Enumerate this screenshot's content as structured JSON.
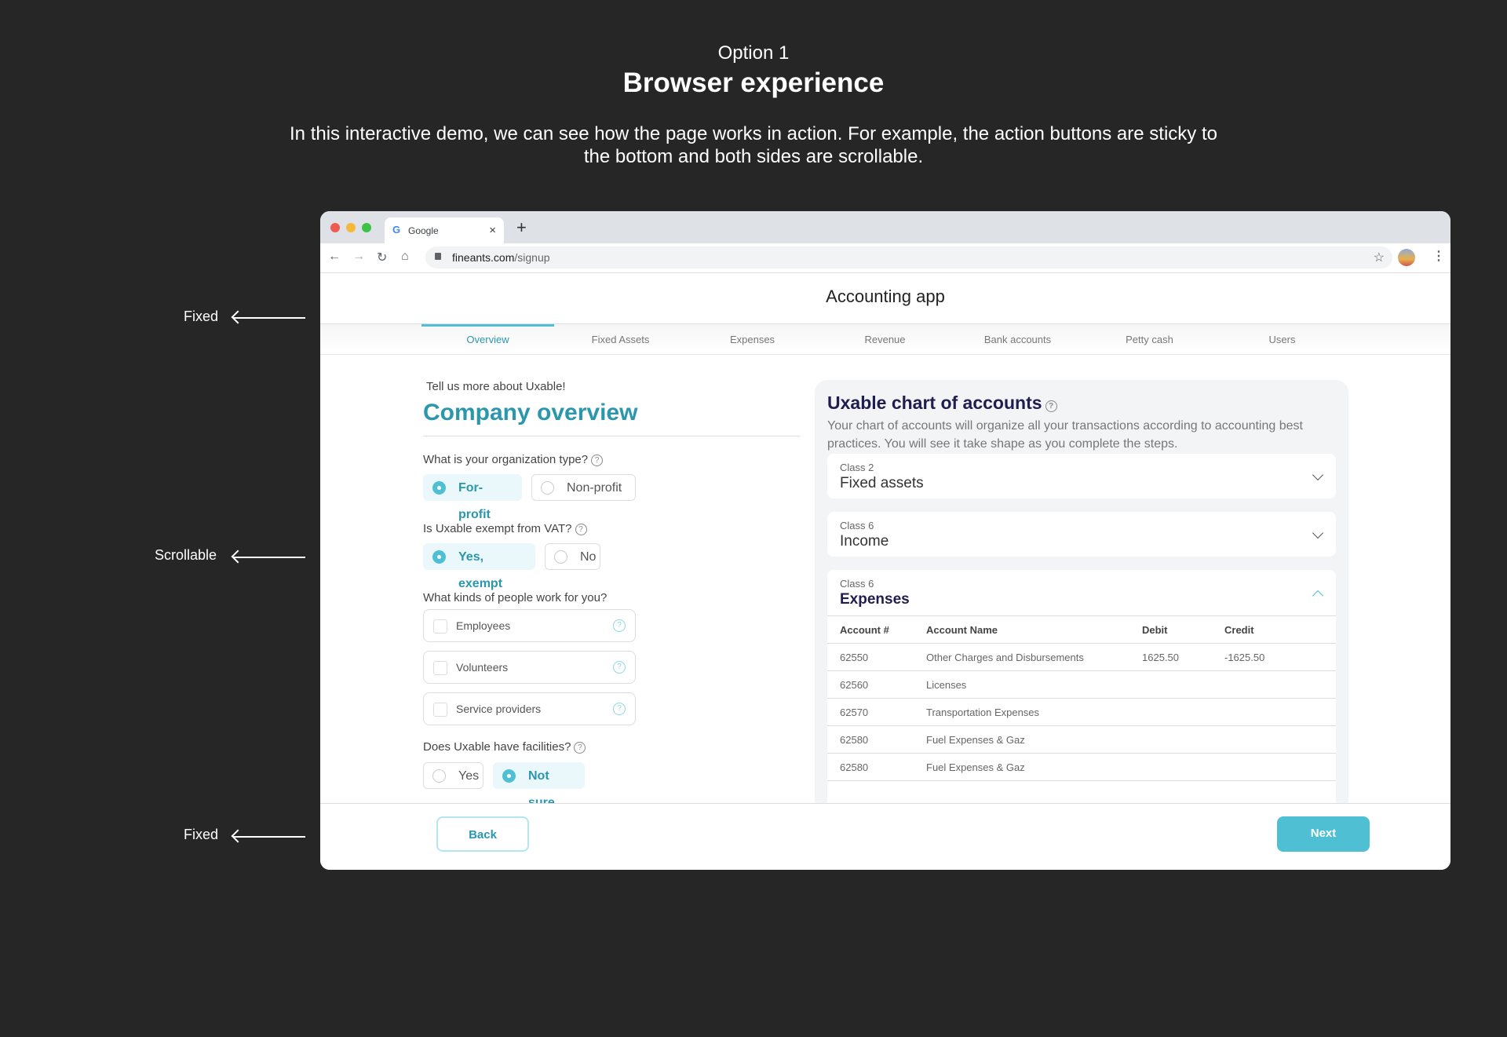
{
  "header": {
    "option": "Option 1",
    "title": "Browser experience",
    "description": "In this interactive demo, we can see how the page works in action. For example, the action buttons are sticky to the bottom and both sides are scrollable."
  },
  "annotations": {
    "top": "Fixed",
    "middle": "Scrollable",
    "bottom": "Fixed"
  },
  "browser": {
    "tab_title": "Google",
    "url_domain": "fineants.com",
    "url_path": "/signup",
    "new_tab": "+",
    "close": "×"
  },
  "app": {
    "title": "Accounting app",
    "tabs": [
      {
        "label": "Overview",
        "active": true
      },
      {
        "label": "Fixed Assets"
      },
      {
        "label": "Expenses"
      },
      {
        "label": "Revenue"
      },
      {
        "label": "Bank accounts"
      },
      {
        "label": "Petty cash"
      },
      {
        "label": "Users"
      }
    ]
  },
  "form": {
    "intro": "Tell us more about Uxable!",
    "title": "Company overview",
    "q1": {
      "label": "What is your organization type?",
      "options": [
        "For-profit",
        "Non-profit"
      ],
      "selected": "For-profit"
    },
    "q2": {
      "label": "Is Uxable exempt from VAT?",
      "options": [
        "Yes, exempt",
        "No"
      ],
      "selected": "Yes, exempt"
    },
    "q3": {
      "label": "What kinds of people work for you?",
      "options": [
        "Employees",
        "Volunteers",
        "Service providers"
      ]
    },
    "q4": {
      "label": "Does Uxable have facilities?",
      "options": [
        "Yes",
        "Not sure"
      ],
      "selected": "Not sure"
    }
  },
  "chart": {
    "title": "Uxable chart of accounts",
    "description": "Your chart of accounts will organize all your transactions according to accounting best practices. You will see it take shape as you complete the steps.",
    "sections": [
      {
        "class": "Class 2",
        "name": "Fixed assets",
        "expanded": false
      },
      {
        "class": "Class 6",
        "name": "Income",
        "expanded": false
      },
      {
        "class": "Class 6",
        "name": "Expenses",
        "expanded": true
      }
    ],
    "columns": [
      "Account #",
      "Account Name",
      "Debit",
      "Credit"
    ],
    "rows": [
      [
        "62550",
        "Other Charges and Disbursements",
        "1625.50",
        "-1625.50"
      ],
      [
        "62560",
        "Licenses",
        "",
        ""
      ],
      [
        "62570",
        "Transportation Expenses",
        "",
        ""
      ],
      [
        "62580",
        "Fuel Expenses & Gaz",
        "",
        ""
      ],
      [
        "62580",
        "Fuel Expenses & Gaz",
        "",
        ""
      ]
    ]
  },
  "footer": {
    "back": "Back",
    "next": "Next"
  },
  "colors": {
    "accent": "#4fc0d4",
    "accent_text": "#2b97ad",
    "navy": "#1f1d4f",
    "background": "#262626"
  }
}
